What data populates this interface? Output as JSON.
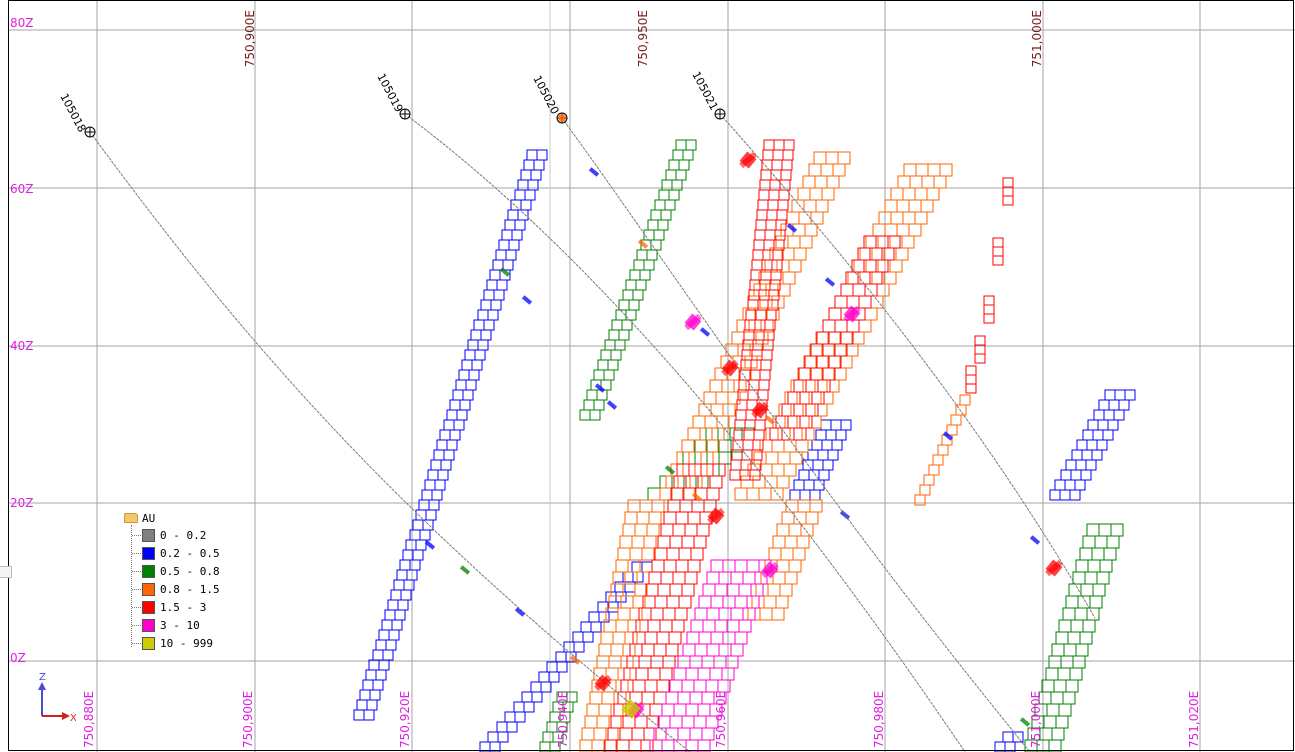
{
  "view": {
    "z_labels": [
      "80Z",
      "60Z",
      "40Z",
      "20Z",
      "0Z"
    ],
    "top_easting_labels": [
      "750,900E",
      "750,950E",
      "751,000E"
    ],
    "bottom_easting_labels": [
      "750,880E",
      "750,900E",
      "750,920E",
      "750,940E",
      "750,960E",
      "750,980E",
      "751,000E",
      "751,020E"
    ],
    "colors": {
      "grid": "#9b9b9b",
      "z_label": "#e020e0",
      "top_label": "#7a1e1e",
      "bottom_label": "#e020e0",
      "frame": "#000000"
    }
  },
  "drillholes": [
    "105018",
    "105019",
    "105020",
    "105021"
  ],
  "legend": {
    "title": "AU",
    "icon": "folder-icon",
    "items": [
      {
        "label": "0 - 0.2",
        "color": "#808080"
      },
      {
        "label": "0.2 - 0.5",
        "color": "#0000ff"
      },
      {
        "label": "0.5 - 0.8",
        "color": "#008000"
      },
      {
        "label": "0.8 - 1.5",
        "color": "#ff6600"
      },
      {
        "label": "1.5 - 3",
        "color": "#ff0000"
      },
      {
        "label": "3 - 10",
        "color": "#ff00cc"
      },
      {
        "label": "10 - 999",
        "color": "#cccc00"
      }
    ]
  },
  "axes_gizmo": {
    "up": "Z",
    "right": "X",
    "up_color": "#4b4bd6",
    "right_color": "#d41f1f"
  }
}
